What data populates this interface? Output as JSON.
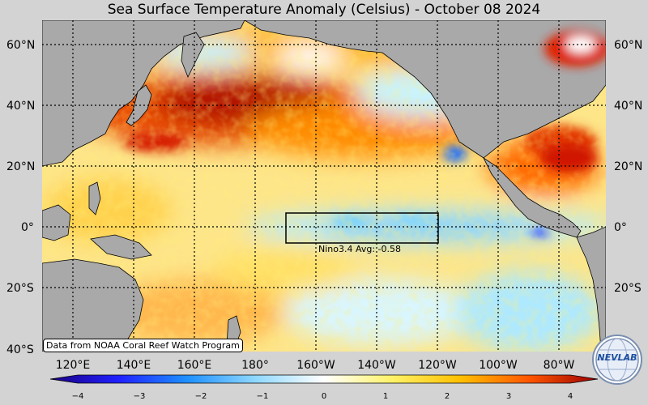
{
  "title": "Sea Surface Temperature Anomaly (Celsius) - October 08 2024",
  "lat_labels": [
    "60°N",
    "40°N",
    "20°N",
    "0°",
    "20°S",
    "40°S"
  ],
  "lon_labels": [
    "120°E",
    "140°E",
    "160°E",
    "180°",
    "160°W",
    "140°W",
    "120°W",
    "100°W",
    "80°W"
  ],
  "nino_label": "Nino3.4 Avg: -0.58",
  "credit": "Data from NOAA Coral Reef Watch Program",
  "colorbar": {
    "ticks": [
      "−4",
      "−3",
      "−2",
      "−1",
      "0",
      "1",
      "2",
      "3",
      "4"
    ],
    "colors": [
      "#1a0080",
      "#2020ff",
      "#1e90ff",
      "#8fd8ff",
      "#ffffff",
      "#fff266",
      "#ffbf00",
      "#ff5500",
      "#9b0000"
    ]
  },
  "logo_text": "NEVLAB"
}
